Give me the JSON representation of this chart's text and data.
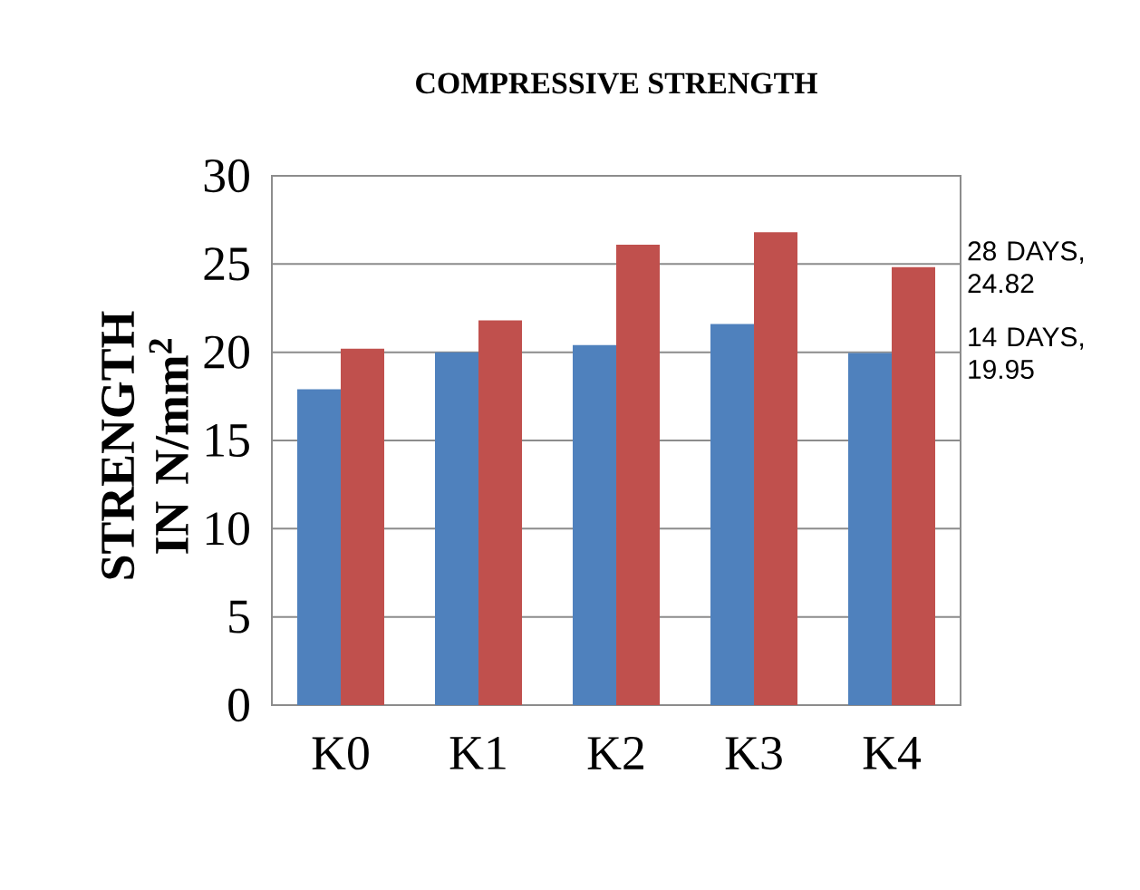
{
  "chart_data": {
    "type": "bar",
    "title": "COMPRESSIVE STRENGTH",
    "ylabel": "STRENGTH IN N/mm$^{2}$",
    "categories": [
      "K0",
      "K1",
      "K2",
      "K3",
      "K4"
    ],
    "series": [
      {
        "color": "#4f81bd",
        "values": [
          17.9,
          20.0,
          20.4,
          21.6,
          19.95
        ]
      },
      {
        "color": "#c0504d",
        "values": [
          20.2,
          21.8,
          26.1,
          26.8,
          24.82
        ]
      }
    ],
    "annotations": [
      {
        "text": "28 DAYS, 24.82",
        "x": "K4",
        "y": 24.82
      },
      {
        "text": "14 DAYS, 19.95",
        "x": "K4",
        "y": 19.95
      }
    ],
    "ylim": [
      0,
      30
    ],
    "yticks": [
      0,
      5,
      10,
      15,
      20,
      25,
      30
    ],
    "grid": "y"
  }
}
